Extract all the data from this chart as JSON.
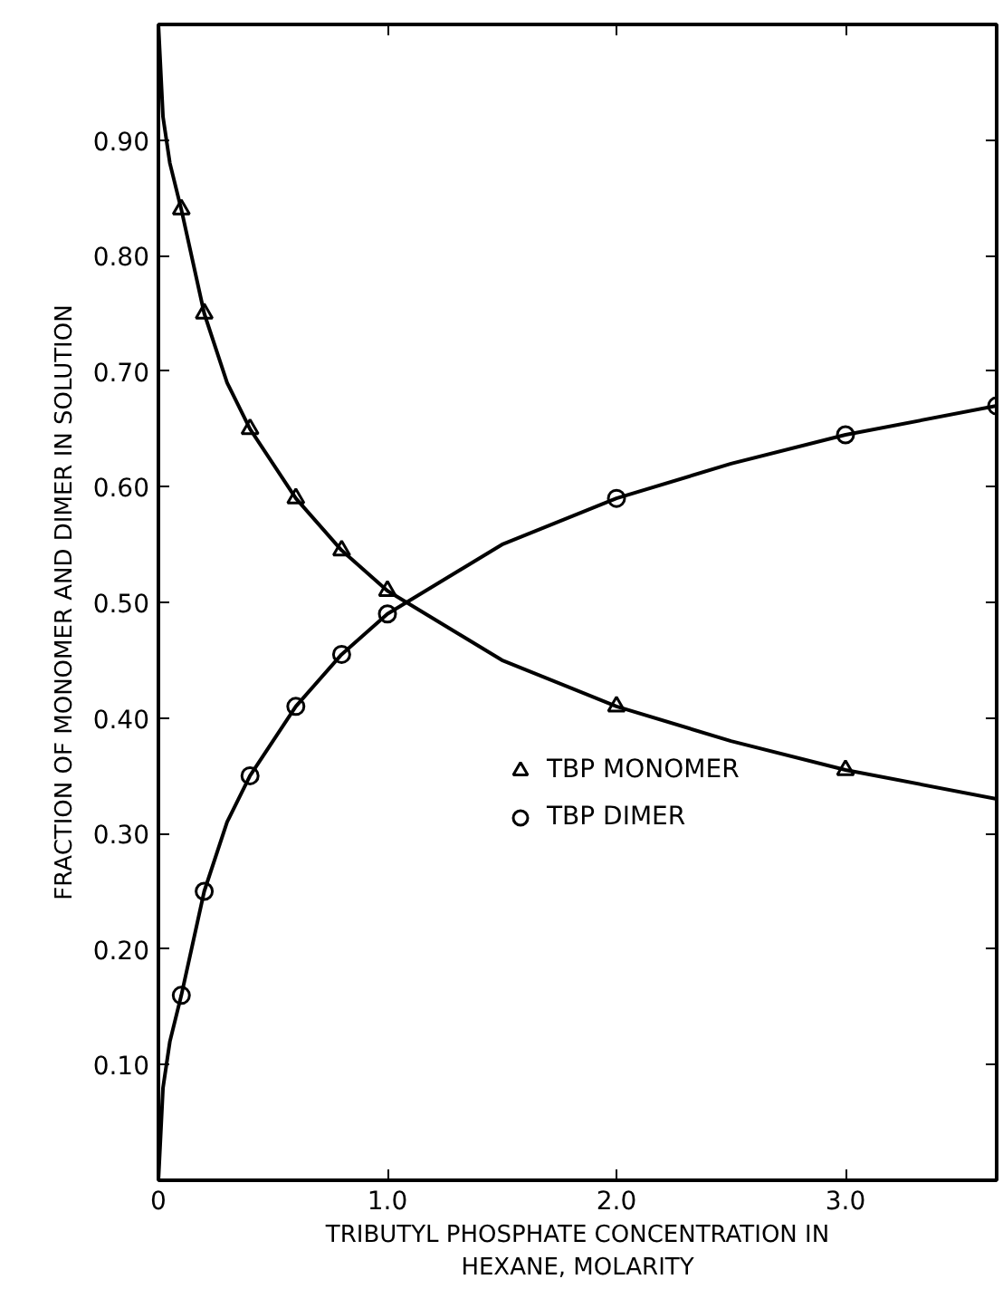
{
  "chart_data": {
    "type": "scatter",
    "xlabel": "TRIBUTYL PHOSPHATE CONCENTRATION IN\nHEXANE, MOLARITY",
    "ylabel": "FRACTION OF MONOMER AND DIMER IN SOLUTION",
    "xlim": [
      0,
      3.66
    ],
    "ylim": [
      0,
      1.0
    ],
    "xticks": [
      {
        "value": 0,
        "label": "0"
      },
      {
        "value": 1,
        "label": "1.0"
      },
      {
        "value": 2,
        "label": "2.0"
      },
      {
        "value": 3,
        "label": "3.0"
      }
    ],
    "yticks": [
      {
        "value": 0.1,
        "label": "0.10"
      },
      {
        "value": 0.2,
        "label": "0.20"
      },
      {
        "value": 0.3,
        "label": "0.30"
      },
      {
        "value": 0.4,
        "label": "0.40"
      },
      {
        "value": 0.5,
        "label": "0.50"
      },
      {
        "value": 0.6,
        "label": "0.60"
      },
      {
        "value": 0.7,
        "label": "0.70"
      },
      {
        "value": 0.8,
        "label": "0.80"
      },
      {
        "value": 0.9,
        "label": "0.90"
      }
    ],
    "grid": false,
    "legend": "center",
    "line_style": "solid",
    "series": [
      {
        "name": "TBP MONOMER",
        "marker": "triangle",
        "color": "#000000",
        "x": [
          0.1,
          0.2,
          0.4,
          0.6,
          0.8,
          1.0,
          2.0,
          3.0
        ],
        "values": [
          0.84,
          0.75,
          0.65,
          0.59,
          0.545,
          0.51,
          0.41,
          0.355
        ]
      },
      {
        "name": "TBP DIMER",
        "marker": "circle",
        "color": "#000000",
        "x": [
          0.1,
          0.2,
          0.4,
          0.6,
          0.8,
          1.0,
          2.0,
          3.0,
          3.66
        ],
        "values": [
          0.16,
          0.25,
          0.35,
          0.41,
          0.455,
          0.49,
          0.59,
          0.645,
          0.67
        ]
      },
      {
        "type": "line",
        "marker": "none",
        "color": "#000000",
        "x": [
          0,
          0.02,
          0.05,
          0.1,
          0.2,
          0.3,
          0.4,
          0.6,
          0.8,
          1.0,
          1.5,
          2.0,
          2.5,
          3.0,
          3.66
        ],
        "values": [
          1.0,
          0.92,
          0.88,
          0.84,
          0.75,
          0.69,
          0.65,
          0.59,
          0.545,
          0.51,
          0.45,
          0.41,
          0.38,
          0.355,
          0.33
        ]
      },
      {
        "type": "line",
        "marker": "none",
        "color": "#000000",
        "x": [
          0,
          0.02,
          0.05,
          0.1,
          0.2,
          0.3,
          0.4,
          0.6,
          0.8,
          1.0,
          1.5,
          2.0,
          2.5,
          3.0,
          3.66
        ],
        "values": [
          0.0,
          0.08,
          0.12,
          0.16,
          0.25,
          0.31,
          0.35,
          0.41,
          0.455,
          0.49,
          0.55,
          0.59,
          0.62,
          0.645,
          0.67
        ]
      }
    ]
  }
}
